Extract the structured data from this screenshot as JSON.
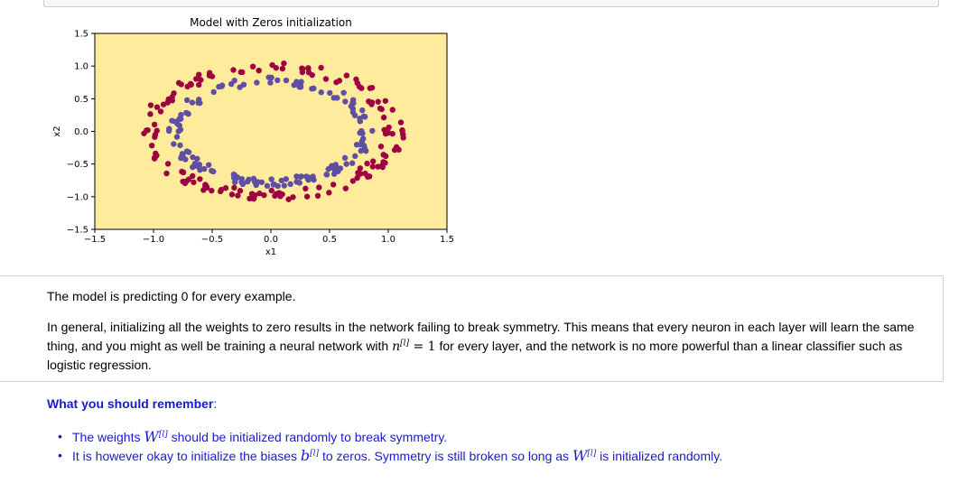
{
  "chart_data": {
    "type": "scatter",
    "title": "Model with Zeros initialization",
    "xlabel": "x1",
    "ylabel": "x2",
    "xlim": [
      -1.5,
      1.5
    ],
    "ylim": [
      -1.5,
      1.5
    ],
    "xticks": [
      "-1.5",
      "-1.0",
      "-0.5",
      "0.0",
      "0.5",
      "1.0",
      "1.5"
    ],
    "yticks": [
      "1.5",
      "1.0",
      "0.5",
      "0.0",
      "-0.5",
      "-1.0",
      "-1.5"
    ],
    "background_color": "#feeb9c",
    "colors": {
      "class_0": "#9e0142",
      "class_1": "#5e4fa2"
    },
    "series": [
      {
        "points_note": "",
        "values": []
      }
    ],
    "outer_radius_x": 1.05,
    "outer_radius_y": 0.98,
    "inner_radius_x": 0.82,
    "inner_radius_y": 0.78
  },
  "markdown": {
    "p1": "The model is predicting 0 for every example.",
    "p2_a": "In general, initializing all the weights to zero results in the network failing to break symmetry. This means that every neuron in each layer will learn the same thing, and you might as well be training a neural network with ",
    "p2_math": "n",
    "p2_sup": "[l]",
    "p2_eq": " = 1",
    "p2_b": " for every layer, and the network is no more powerful than a linear classifier such as logistic regression."
  },
  "remember": {
    "heading": "What you should remember",
    "colon": ":",
    "bullet1_a": "The weights ",
    "bullet1_math": "W",
    "bullet1_sup": "[l]",
    "bullet1_b": " should be initialized randomly to break symmetry.",
    "bullet2_a": "It is however okay to initialize the biases ",
    "bullet2_math": "b",
    "bullet2_sup": "[l]",
    "bullet2_b": " to zeros. Symmetry is still broken so long as ",
    "bullet2_math2": "W",
    "bullet2_sup2": "[l]",
    "bullet2_c": " is initialized randomly."
  }
}
